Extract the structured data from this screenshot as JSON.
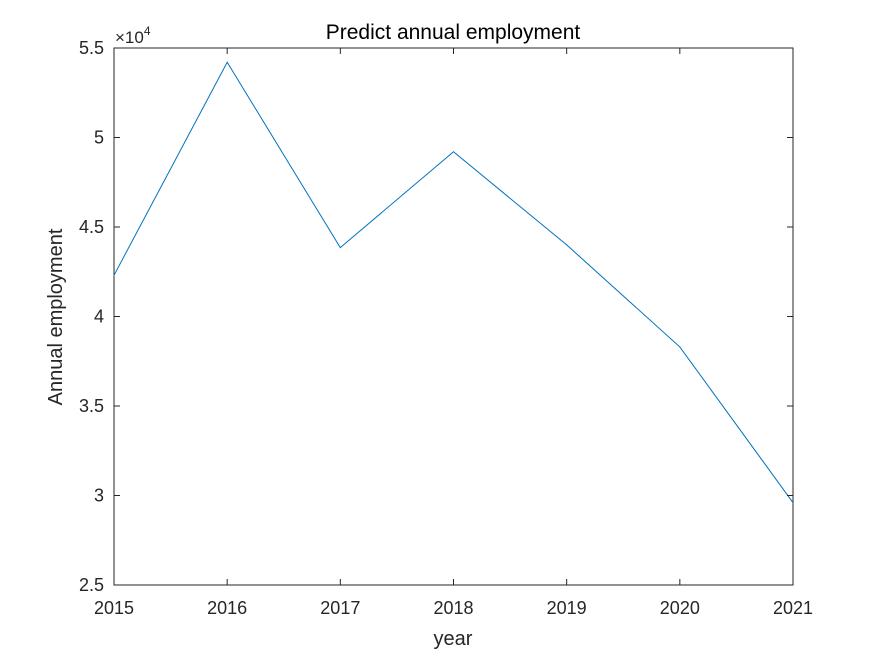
{
  "chart_data": {
    "type": "line",
    "title": "Predict annual employment",
    "xlabel": "year",
    "ylabel": "Annual employment",
    "x": [
      2015,
      2016,
      2017,
      2018,
      2019,
      2020,
      2021
    ],
    "series": [
      {
        "values": [
          42300,
          54200,
          43850,
          49200,
          44000,
          38300,
          29600
        ],
        "color": "#0072BD"
      }
    ],
    "xlim": [
      2015,
      2021
    ],
    "ylim": [
      25000,
      55000
    ],
    "xticks": [
      "2015",
      "2016",
      "2017",
      "2018",
      "2019",
      "2020",
      "2021"
    ],
    "yticks": [
      "2.5",
      "3",
      "3.5",
      "4",
      "4.5",
      "5",
      "5.5"
    ],
    "ytick_values": [
      25000,
      30000,
      35000,
      40000,
      45000,
      50000,
      55000
    ],
    "y_exponent_base": "×10",
    "y_exponent_power": "4",
    "grid": false,
    "box": true
  }
}
